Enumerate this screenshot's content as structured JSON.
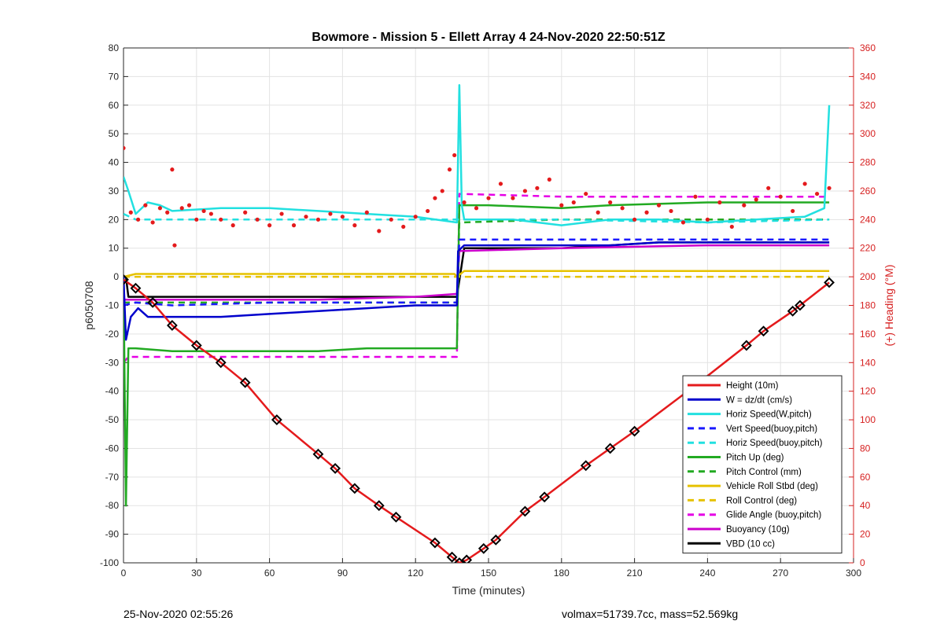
{
  "chart_data": {
    "type": "line",
    "title": "Bowmore - Mission 5 - Ellett Array 4 24-Nov-2020 22:50:51Z",
    "xlabel": "Time (minutes)",
    "ylabel": "p6050708",
    "ylabel_right": "(+) Heading (°M)",
    "xlim": [
      0,
      300
    ],
    "ylim": [
      -100,
      80
    ],
    "ylim_right": [
      0,
      360
    ],
    "xticks": [
      0,
      30,
      60,
      90,
      120,
      150,
      180,
      210,
      240,
      270,
      300
    ],
    "yticks": [
      -100,
      -90,
      -80,
      -70,
      -60,
      -50,
      -40,
      -30,
      -20,
      -10,
      0,
      10,
      20,
      30,
      40,
      50,
      60,
      70,
      80
    ],
    "yticks_right": [
      0,
      20,
      40,
      60,
      80,
      100,
      120,
      140,
      160,
      180,
      200,
      220,
      240,
      260,
      280,
      300,
      320,
      340,
      360
    ],
    "grid": true,
    "legend_position": "bottom-right",
    "series": [
      {
        "name": "Height (10m)",
        "color": "#e41a1c",
        "style": "solid",
        "x": [
          0,
          5,
          12,
          20,
          30,
          40,
          50,
          63,
          80,
          87,
          95,
          105,
          112,
          128,
          135,
          138,
          141,
          148,
          153,
          165,
          173,
          190,
          200,
          210,
          235,
          256,
          263,
          275,
          278,
          290
        ],
        "y": [
          -1,
          -4,
          -9,
          -17,
          -24,
          -30,
          -37,
          -50,
          -62,
          -67,
          -74,
          -80,
          -84,
          -93,
          -98,
          -100,
          -99,
          -95,
          -92,
          -82,
          -77,
          -66,
          -60,
          -54,
          -38,
          -24,
          -19,
          -12,
          -10,
          -2
        ]
      },
      {
        "name": "W = dz/dt (cm/s)",
        "color": "#0000cc",
        "style": "solid",
        "x": [
          0,
          1,
          3,
          6,
          10,
          20,
          40,
          60,
          80,
          100,
          120,
          137,
          137.5,
          140,
          160,
          180,
          200,
          220,
          240,
          260,
          280,
          290
        ],
        "y": [
          0,
          -22,
          -14,
          -11,
          -14,
          -14,
          -14,
          -13,
          -12,
          -11,
          -10,
          -10,
          9,
          11,
          11,
          11,
          11,
          12,
          12,
          12,
          12,
          12
        ]
      },
      {
        "name": "Horiz Speed(W,pitch)",
        "color": "#22e0e0",
        "style": "solid",
        "x": [
          0,
          2,
          5,
          10,
          15,
          20,
          40,
          60,
          80,
          100,
          120,
          137,
          138,
          139,
          140,
          160,
          180,
          200,
          220,
          240,
          260,
          280,
          288,
          290
        ],
        "y": [
          35,
          30,
          22,
          26,
          25,
          23,
          24,
          24,
          23,
          22,
          21,
          19,
          67,
          25,
          20,
          20,
          18,
          20,
          20,
          19,
          20,
          21,
          24,
          60
        ]
      },
      {
        "name": "Vert Speed(buoy,pitch)",
        "color": "#1a1aff",
        "style": "dashed",
        "x": [
          0,
          5,
          20,
          60,
          100,
          137,
          138,
          160,
          200,
          240,
          290
        ],
        "y": [
          -10,
          -9,
          -10,
          -9,
          -9,
          -9,
          13,
          13,
          13,
          13,
          13
        ]
      },
      {
        "name": "Horiz Speed(buoy,pitch)",
        "color": "#22e0e0",
        "style": "dashed",
        "x": [
          0,
          5,
          40,
          80,
          120,
          137,
          138,
          180,
          240,
          290
        ],
        "y": [
          22,
          20,
          20,
          20,
          20,
          20,
          20,
          20,
          19,
          20
        ]
      },
      {
        "name": "Pitch Up (deg)",
        "color": "#22aa22",
        "style": "solid",
        "x": [
          0,
          1,
          2,
          5,
          20,
          40,
          60,
          80,
          100,
          120,
          137,
          138,
          150,
          180,
          200,
          240,
          260,
          290
        ],
        "y": [
          0,
          -80,
          -25,
          -25,
          -26,
          -26,
          -26,
          -26,
          -25,
          -25,
          -25,
          25,
          25,
          24,
          25,
          26,
          26,
          26
        ]
      },
      {
        "name": "Pitch Control (mm)",
        "color": "#22aa22",
        "style": "dashed",
        "x": [
          0,
          5,
          40,
          80,
          120,
          137,
          138,
          180,
          240,
          290
        ],
        "y": [
          -9,
          -9,
          -9,
          -9,
          -9,
          -9,
          19,
          20,
          20,
          20
        ]
      },
      {
        "name": "Vehicle Roll Stbd (deg)",
        "color": "#e6c200",
        "style": "solid",
        "x": [
          0,
          5,
          20,
          40,
          60,
          80,
          100,
          120,
          136,
          137,
          140,
          160,
          180,
          200,
          220,
          240,
          260,
          280,
          290
        ],
        "y": [
          0,
          1,
          1,
          1,
          1,
          1,
          1,
          1,
          1,
          0,
          2,
          2,
          2,
          2,
          2,
          2,
          2,
          2,
          2
        ]
      },
      {
        "name": "Roll Control (deg)",
        "color": "#e6c200",
        "style": "dashed",
        "x": [
          0,
          40,
          100,
          137,
          138,
          180,
          240,
          290
        ],
        "y": [
          0,
          0,
          0,
          0,
          0,
          0,
          0,
          0
        ]
      },
      {
        "name": "Glide Angle (buoy,pitch)",
        "color": "#e600e6",
        "style": "dashed",
        "x": [
          0,
          2,
          10,
          40,
          80,
          120,
          137,
          138,
          180,
          240,
          290
        ],
        "y": [
          -30,
          -28,
          -28,
          -28,
          -28,
          -28,
          -28,
          29,
          28,
          28,
          28
        ]
      },
      {
        "name": "Buoyancy (10g)",
        "color": "#cc00cc",
        "style": "solid",
        "x": [
          0,
          5,
          40,
          80,
          120,
          137,
          138,
          180,
          240,
          290
        ],
        "y": [
          -8,
          -8,
          -8,
          -8,
          -7,
          -6,
          9,
          10,
          11,
          11
        ]
      },
      {
        "name": "VBD (10 cc)",
        "color": "#000000",
        "style": "solid",
        "x": [
          0,
          1,
          2,
          40,
          80,
          137,
          140,
          160,
          180,
          200,
          220,
          290
        ],
        "y": [
          0,
          0,
          -7,
          -7,
          -7,
          -7,
          10,
          10,
          10,
          11,
          12,
          12
        ]
      }
    ],
    "heading_series": {
      "name": "Heading",
      "color": "#e41a1c",
      "axis": "right",
      "x": [
        0,
        3,
        6,
        9,
        12,
        15,
        18,
        20,
        21,
        24,
        27,
        30,
        33,
        36,
        40,
        45,
        50,
        55,
        60,
        65,
        70,
        75,
        80,
        85,
        90,
        95,
        100,
        105,
        110,
        115,
        120,
        125,
        128,
        131,
        134,
        136,
        140,
        145,
        150,
        155,
        160,
        165,
        170,
        175,
        180,
        185,
        190,
        195,
        200,
        205,
        210,
        215,
        220,
        225,
        230,
        235,
        240,
        245,
        250,
        255,
        260,
        265,
        270,
        275,
        280,
        285,
        290
      ],
      "y": [
        290,
        245,
        240,
        250,
        238,
        248,
        245,
        275,
        222,
        248,
        250,
        240,
        246,
        244,
        240,
        236,
        245,
        240,
        236,
        244,
        236,
        242,
        240,
        244,
        242,
        236,
        245,
        232,
        240,
        235,
        242,
        246,
        255,
        260,
        275,
        285,
        252,
        248,
        255,
        265,
        255,
        260,
        262,
        268,
        250,
        252,
        258,
        245,
        252,
        248,
        240,
        245,
        250,
        246,
        238,
        256,
        240,
        252,
        235,
        250,
        254,
        262,
        256,
        246,
        265,
        258,
        262
      ]
    },
    "markers": {
      "shape": "diamond",
      "color": "#000000",
      "on_series": "Height (10m)"
    }
  },
  "footer": {
    "left": "25-Nov-2020 02:55:26",
    "right": "volmax=51739.7cc, mass=52.569kg"
  }
}
